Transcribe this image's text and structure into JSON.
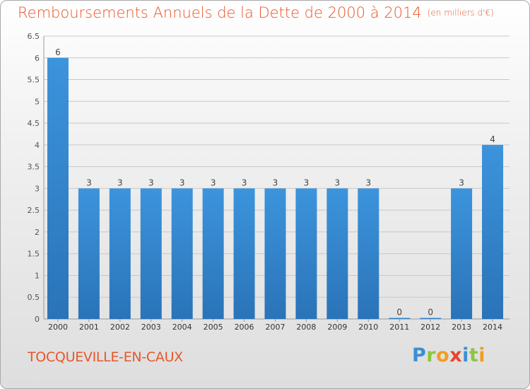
{
  "title": "Remboursements Annuels de la Dette de 2000 à 2014",
  "unit_note": "(en milliers d'€)",
  "commune": "TOCQUEVILLE-EN-CAUX",
  "logo": {
    "letters": [
      "P",
      "r",
      "o",
      "x",
      "i",
      "t",
      "i"
    ],
    "colors": [
      "#3b8fd4",
      "#8cc63e",
      "#f39c1f",
      "#e8452a",
      "#3b8fd4",
      "#8cc63e",
      "#f39c1f"
    ]
  },
  "colors": {
    "bar": "#3c94dc",
    "bar_dark": "#2a73b8",
    "title": "#e8562a",
    "grid": "#c8c8c8"
  },
  "chart_data": {
    "type": "bar",
    "title": "Remboursements Annuels de la Dette de 2000 à 2014",
    "categories": [
      "2000",
      "2001",
      "2002",
      "2003",
      "2004",
      "2005",
      "2006",
      "2007",
      "2008",
      "2009",
      "2010",
      "2011",
      "2012",
      "2013",
      "2014"
    ],
    "values": [
      6,
      3,
      3,
      3,
      3,
      3,
      3,
      3,
      3,
      3,
      3,
      0,
      0,
      3,
      4
    ],
    "ylim": [
      0,
      6.5
    ],
    "yticks": [
      0,
      0.5,
      1,
      1.5,
      2,
      2.5,
      3,
      3.5,
      4,
      4.5,
      5,
      5.5,
      6,
      6.5
    ],
    "grid": true,
    "data_labels": true
  }
}
